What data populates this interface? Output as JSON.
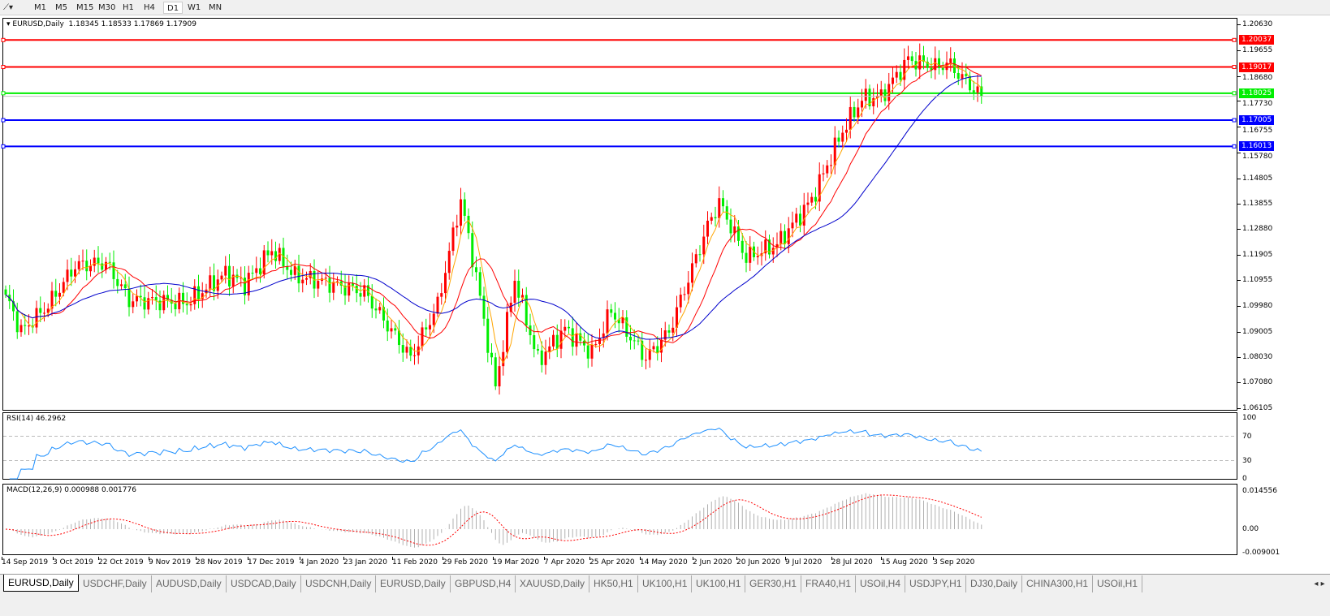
{
  "toolbar": {
    "timeframes": [
      "M1",
      "M5",
      "M15",
      "M30",
      "H1",
      "H4",
      "D1",
      "W1",
      "MN"
    ],
    "active": "D1"
  },
  "main": {
    "title": "EURUSD,Daily",
    "ohlc": "1.18345 1.18533 1.17869 1.17909",
    "current_price": "1.17909",
    "price_axis": [
      "1.20630",
      "1.19655",
      "1.18680",
      "1.17730",
      "1.16755",
      "1.15780",
      "1.14805",
      "1.13855",
      "1.12880",
      "1.11905",
      "1.10955",
      "1.09980",
      "1.09005",
      "1.08030",
      "1.07080",
      "1.06105"
    ],
    "levels": [
      {
        "label": "1.20037",
        "color": "#ff0000"
      },
      {
        "label": "1.19017",
        "color": "#ff0000"
      },
      {
        "label": "1.18025",
        "color": "#00ee00"
      },
      {
        "label": "1.17005",
        "color": "#0000ff"
      },
      {
        "label": "1.16013",
        "color": "#0000ff"
      }
    ],
    "candle_colors": {
      "bull": "#ff0000",
      "bear": "#00ee00"
    },
    "ma_colors": [
      "#ffa500",
      "#ff0000",
      "#0000cc"
    ]
  },
  "rsi": {
    "title": "RSI(14) 46.2962",
    "axis": [
      "100",
      "70",
      "30",
      "0"
    ],
    "color": "#1e90ff"
  },
  "macd": {
    "title": "MACD(12,26,9) 0.000988 0.001776",
    "axis": [
      "0.014556",
      "0.00",
      "-0.009001"
    ],
    "hist_color": "#b0b0b0",
    "signal_color": "#ff0000"
  },
  "dates": [
    "14 Sep 2019",
    "3 Oct 2019",
    "22 Oct 2019",
    "9 Nov 2019",
    "28 Nov 2019",
    "17 Dec 2019",
    "4 Jan 2020",
    "23 Jan 2020",
    "11 Feb 2020",
    "29 Feb 2020",
    "19 Mar 2020",
    "7 Apr 2020",
    "25 Apr 2020",
    "14 May 2020",
    "2 Jun 2020",
    "20 Jun 2020",
    "9 Jul 2020",
    "28 Jul 2020",
    "15 Aug 2020",
    "3 Sep 2020"
  ],
  "tabs": [
    "EURUSD,Daily",
    "USDCHF,Daily",
    "AUDUSD,Daily",
    "USDCAD,Daily",
    "USDCNH,Daily",
    "EURUSD,Daily",
    "GBPUSD,H4",
    "XAUUSD,Daily",
    "HK50,H1",
    "UK100,H1",
    "UK100,H1",
    "GER30,H1",
    "FRA40,H1",
    "USOil,H4",
    "USDJPY,H1",
    "DJ30,Daily",
    "CHINA300,H1",
    "USOil,H1"
  ],
  "chart_data": {
    "type": "candlestick",
    "symbol": "EURUSD",
    "period": "Daily",
    "approx_closes": [
      [
        "2019-09-25",
        1.104
      ],
      [
        "2019-10-01",
        1.09
      ],
      [
        "2019-10-10",
        1.1
      ],
      [
        "2019-10-21",
        1.115
      ],
      [
        "2019-10-31",
        1.116
      ],
      [
        "2019-11-08",
        1.102
      ],
      [
        "2019-11-29",
        1.101
      ],
      [
        "2019-12-13",
        1.112
      ],
      [
        "2019-12-20",
        1.108
      ],
      [
        "2019-12-31",
        1.121
      ],
      [
        "2020-01-08",
        1.111
      ],
      [
        "2020-01-17",
        1.109
      ],
      [
        "2020-02-03",
        1.105
      ],
      [
        "2020-02-19",
        1.08
      ],
      [
        "2020-02-28",
        1.1
      ],
      [
        "2020-03-09",
        1.14
      ],
      [
        "2020-03-13",
        1.111
      ],
      [
        "2020-03-20",
        1.069
      ],
      [
        "2020-03-27",
        1.11
      ],
      [
        "2020-04-06",
        1.079
      ],
      [
        "2020-04-15",
        1.091
      ],
      [
        "2020-04-24",
        1.082
      ],
      [
        "2020-05-01",
        1.098
      ],
      [
        "2020-05-14",
        1.08
      ],
      [
        "2020-05-22",
        1.09
      ],
      [
        "2020-06-05",
        1.13
      ],
      [
        "2020-06-10",
        1.139
      ],
      [
        "2020-06-19",
        1.118
      ],
      [
        "2020-07-01",
        1.123
      ],
      [
        "2020-07-14",
        1.14
      ],
      [
        "2020-07-24",
        1.166
      ],
      [
        "2020-07-31",
        1.178
      ],
      [
        "2020-08-07",
        1.179
      ],
      [
        "2020-08-18",
        1.193
      ],
      [
        "2020-08-28",
        1.19
      ],
      [
        "2020-09-01",
        1.192
      ],
      [
        "2020-09-14",
        1.179
      ]
    ],
    "ylim": [
      1.06105,
      1.2063
    ]
  }
}
